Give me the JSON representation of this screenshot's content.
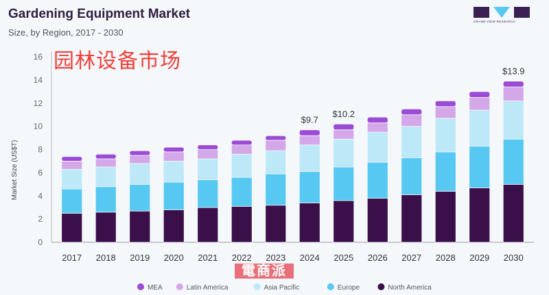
{
  "header": {
    "title": "Gardening Equipment Market",
    "subtitle": "Size, by Region, 2017 - 2030",
    "logo_text": "GRAND VIEW RESEARCH"
  },
  "watermarks": {
    "overlay": "园林设备市场",
    "stamp": "電商派"
  },
  "chart_data": {
    "type": "bar",
    "stacked": true,
    "title": "Gardening Equipment Market",
    "subtitle": "Size, by Region, 2017 - 2030",
    "xlabel": "",
    "ylabel": "Market Size (US$T)",
    "ylim": [
      0,
      16
    ],
    "yticks": [
      0,
      2,
      4,
      6,
      8,
      10,
      12,
      14,
      16
    ],
    "grid": false,
    "legend_position": "bottom",
    "categories": [
      "2017",
      "2018",
      "2019",
      "2020",
      "2021",
      "2022",
      "2023",
      "2024",
      "2025",
      "2026",
      "2027",
      "2028",
      "2029",
      "2030"
    ],
    "series": [
      {
        "name": "North America",
        "color": "#3a0f4a",
        "values": [
          2.5,
          2.6,
          2.7,
          2.8,
          3.0,
          3.1,
          3.2,
          3.4,
          3.6,
          3.8,
          4.1,
          4.4,
          4.7,
          5.0
        ]
      },
      {
        "name": "Europe",
        "color": "#57c8f1",
        "values": [
          2.1,
          2.2,
          2.3,
          2.4,
          2.4,
          2.5,
          2.7,
          2.7,
          2.9,
          3.1,
          3.2,
          3.4,
          3.6,
          3.9
        ]
      },
      {
        "name": "Asia Pacific",
        "color": "#bde8f8",
        "values": [
          1.7,
          1.7,
          1.8,
          1.8,
          1.8,
          2.0,
          2.0,
          2.3,
          2.4,
          2.6,
          2.7,
          2.9,
          3.1,
          3.3
        ]
      },
      {
        "name": "Latin America",
        "color": "#d4a8e8",
        "values": [
          0.7,
          0.7,
          0.7,
          0.8,
          0.8,
          0.8,
          0.9,
          0.8,
          0.8,
          0.8,
          1.0,
          1.0,
          1.1,
          1.2
        ]
      },
      {
        "name": "MEA",
        "color": "#9b4bd6",
        "values": [
          0.4,
          0.4,
          0.4,
          0.4,
          0.4,
          0.4,
          0.4,
          0.5,
          0.5,
          0.5,
          0.5,
          0.5,
          0.5,
          0.5
        ]
      }
    ],
    "legend_order": [
      "MEA",
      "Latin America",
      "Asia Pacific",
      "Europe",
      "North America"
    ],
    "annotations": [
      {
        "category": "2024",
        "label": "$9.7"
      },
      {
        "category": "2025",
        "label": "$10.2"
      },
      {
        "category": "2030",
        "label": "$13.9"
      }
    ]
  }
}
